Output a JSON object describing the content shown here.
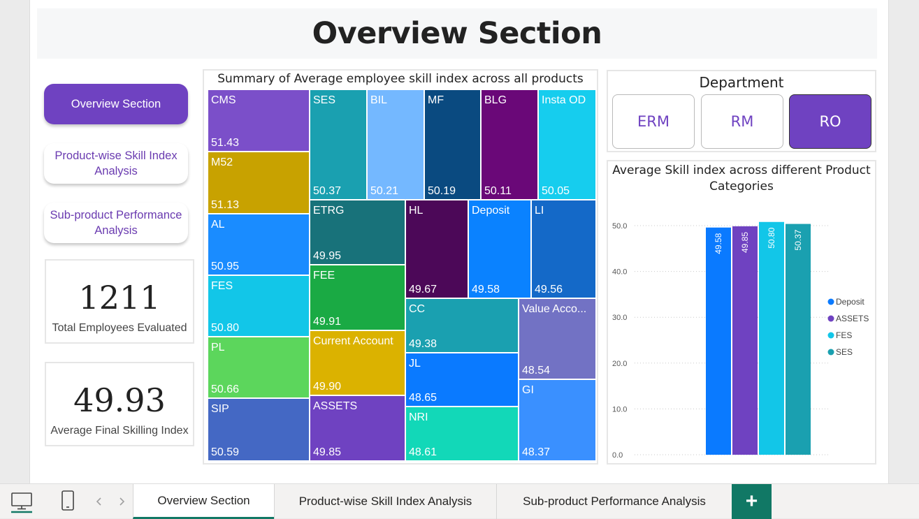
{
  "page_title": "Overview Section",
  "nav": {
    "overview": "Overview Section",
    "product_wise": "Product-wise Skill Index Analysis",
    "sub_product": "Sub-product Performance Analysis"
  },
  "cards": {
    "employees": {
      "value": "1211",
      "label": "Total Employees Evaluated"
    },
    "avg_index": {
      "value": "49.93",
      "label": "Average Final Skilling Index"
    }
  },
  "treemap": {
    "title": "Summary of Average employee skill index across all products",
    "items": [
      {
        "name": "CMS",
        "value": "51.43",
        "color": "#7b4fc9"
      },
      {
        "name": "M52",
        "value": "51.13",
        "color": "#c8a200"
      },
      {
        "name": "AL",
        "value": "50.95",
        "color": "#1a8cff"
      },
      {
        "name": "FES",
        "value": "50.80",
        "color": "#12c6e8"
      },
      {
        "name": "PL",
        "value": "50.66",
        "color": "#5cd65c"
      },
      {
        "name": "SIP",
        "value": "50.59",
        "color": "#4468c4"
      },
      {
        "name": "SES",
        "value": "50.37",
        "color": "#1aa0b0"
      },
      {
        "name": "BIL",
        "value": "50.21",
        "color": "#74b8ff"
      },
      {
        "name": "MF",
        "value": "50.19",
        "color": "#0a4a80"
      },
      {
        "name": "BLG",
        "value": "50.11",
        "color": "#6a0878"
      },
      {
        "name": "Insta OD",
        "value": "50.05",
        "color": "#16cdee"
      },
      {
        "name": "ETRG",
        "value": "49.95",
        "color": "#18727a"
      },
      {
        "name": "HL",
        "value": "49.67",
        "color": "#4c0858"
      },
      {
        "name": "Deposit",
        "value": "49.58",
        "color": "#0a82ff"
      },
      {
        "name": "LI",
        "value": "49.56",
        "color": "#1469c8"
      },
      {
        "name": "FEE",
        "value": "49.91",
        "color": "#1aaa44"
      },
      {
        "name": "CC",
        "value": "49.38",
        "color": "#1aa0b0"
      },
      {
        "name": "Value Acco...",
        "value": "48.54",
        "color": "#7272c4"
      },
      {
        "name": "Current Account",
        "value": "49.90",
        "color": "#dbb200"
      },
      {
        "name": "JL",
        "value": "48.65",
        "color": "#0a7aff"
      },
      {
        "name": "GI",
        "value": "48.37",
        "color": "#3a90ff"
      },
      {
        "name": "ASSETS",
        "value": "49.85",
        "color": "#6f42c1"
      },
      {
        "name": "NRI",
        "value": "48.61",
        "color": "#12d8b8"
      }
    ]
  },
  "department": {
    "title": "Department",
    "options": [
      "ERM",
      "RM",
      "RO"
    ],
    "selected": "RO"
  },
  "chart_data": {
    "type": "bar",
    "title": "Average Skill index across different Product Categories",
    "categories": [
      "Deposit",
      "ASSETS",
      "FES",
      "SES"
    ],
    "values": [
      49.58,
      49.85,
      50.8,
      50.37
    ],
    "value_labels": [
      "49.58",
      "49.85",
      "50.80",
      "50.37"
    ],
    "colors": [
      "#0a7aff",
      "#6f42c1",
      "#12c6e8",
      "#1aa0b0"
    ],
    "ylim": [
      0,
      50
    ],
    "yticks": [
      "0.0",
      "10.0",
      "20.0",
      "30.0",
      "40.0",
      "50.0"
    ],
    "legend": [
      "Deposit",
      "ASSETS",
      "FES",
      "SES"
    ],
    "legend_position": "right",
    "grid": true
  },
  "tabs": {
    "items": [
      "Overview Section",
      "Product-wise Skill Index Analysis",
      "Sub-product Performance Analysis"
    ],
    "active": "Overview Section",
    "add_label": "+"
  },
  "icons": {
    "desktop": "desktop-view-icon",
    "mobile": "mobile-view-icon",
    "prev": "chevron-left-icon",
    "next": "chevron-right-icon"
  }
}
